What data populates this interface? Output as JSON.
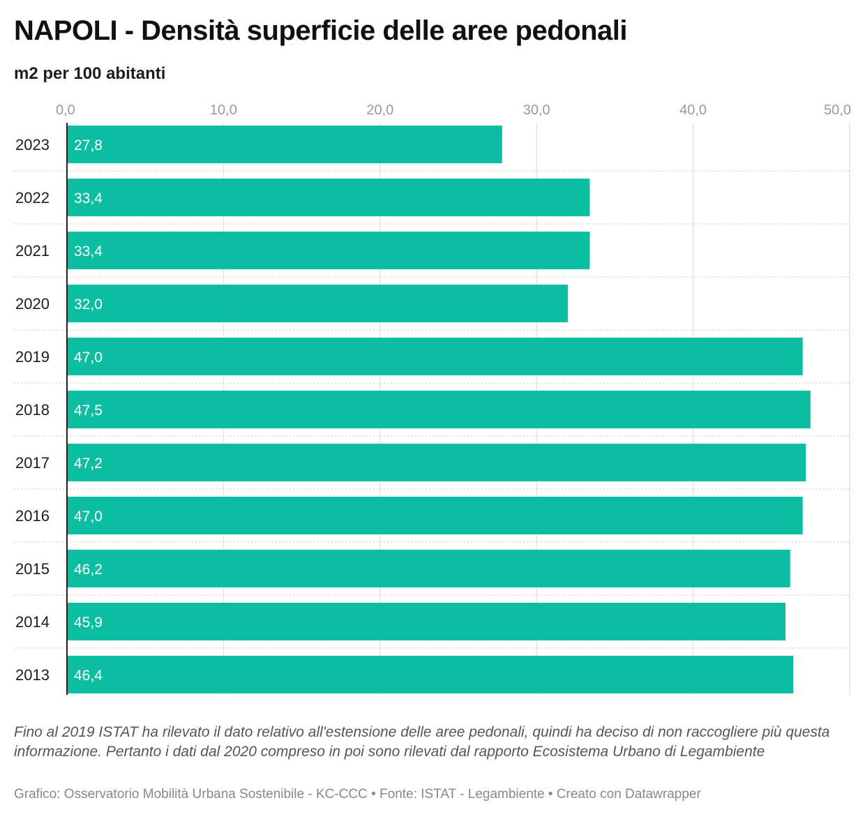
{
  "chart_data": {
    "type": "bar",
    "orientation": "horizontal",
    "title": "NAPOLI - Densità superficie delle aree pedonali",
    "subtitle": "m2 per 100 abitanti",
    "categories": [
      "2023",
      "2022",
      "2021",
      "2020",
      "2019",
      "2018",
      "2017",
      "2016",
      "2015",
      "2014",
      "2013"
    ],
    "values": [
      27.8,
      33.4,
      33.4,
      32.0,
      47.0,
      47.5,
      47.2,
      47.0,
      46.2,
      45.9,
      46.4
    ],
    "value_labels": [
      "27,8",
      "33,4",
      "33,4",
      "32,0",
      "47,0",
      "47,5",
      "47,2",
      "47,0",
      "46,2",
      "45,9",
      "46,4"
    ],
    "xlim": [
      0,
      50
    ],
    "x_ticks": [
      0,
      10,
      20,
      30,
      40,
      50
    ],
    "x_tick_labels": [
      "0,0",
      "10,0",
      "20,0",
      "30,0",
      "40,0",
      "50,0"
    ],
    "tick_position": "top",
    "grid": true,
    "bar_color": "#0bbea1"
  },
  "note": "Fino al 2019 ISTAT ha rilevato il dato relativo all'estensione delle aree pedonali, quindi ha deciso di non raccogliere più questa informazione. Pertanto i dati dal 2020 compreso in poi sono rilevati dal rapporto Ecosistema Urbano di Legambiente",
  "credit": "Grafico: Osservatorio Mobilità Urbana Sostenibile - KC-CCC • Fonte: ISTAT - Legambiente • Creato con Datawrapper"
}
